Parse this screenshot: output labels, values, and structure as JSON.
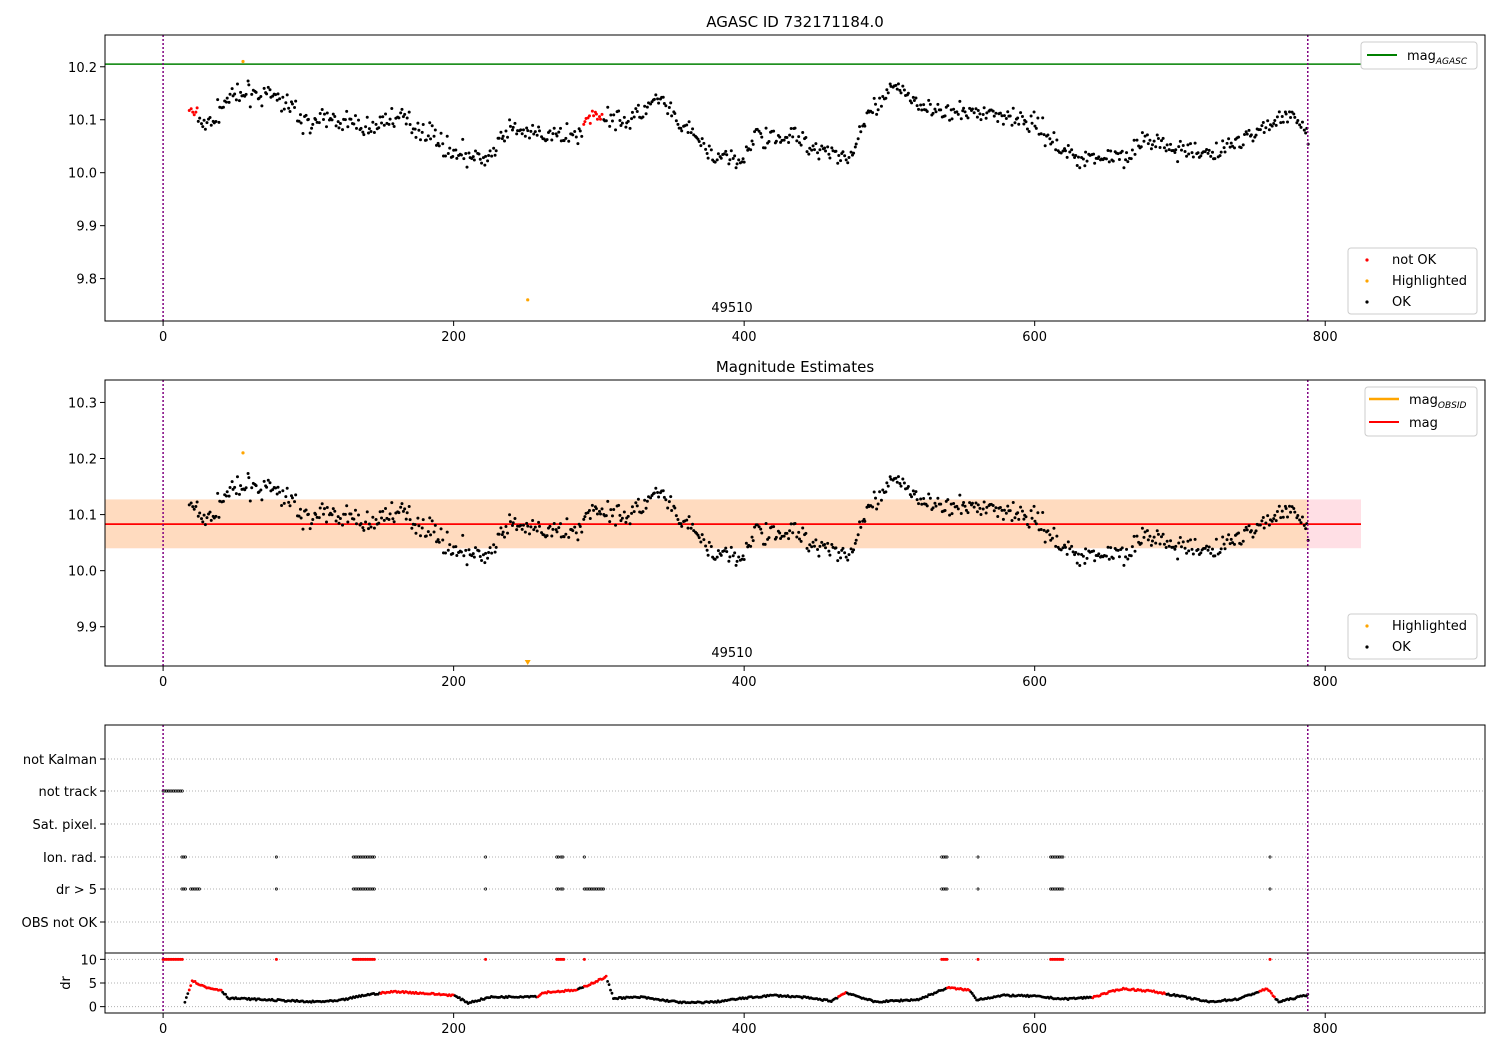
{
  "figure": {
    "x_ticks": [
      0,
      200,
      400,
      600,
      800
    ],
    "obsid_label": "49510",
    "colors": {
      "ok": "#000000",
      "not_ok": "#ff0000",
      "highlighted": "#ffa500",
      "mag_agasc": "#008000",
      "mag_obsid": "#ffa500",
      "mag": "#ff0000",
      "boundary": "#800080",
      "band_red": "#ffc0cb",
      "band_orange": "#ffdab9"
    }
  },
  "chart_data": [
    {
      "type": "scatter",
      "title": "AGASC ID 732171184.0",
      "xlim": [
        -40,
        910
      ],
      "ylim": [
        9.72,
        10.26
      ],
      "yticks": [
        9.8,
        9.9,
        10.0,
        10.1,
        10.2
      ],
      "mag_agasc": 10.205,
      "legend_lines": [
        {
          "name": "mag",
          "subscript": "AGASC"
        }
      ],
      "legend_points": [
        "not OK",
        "Highlighted",
        "OK"
      ],
      "highlighted": [
        [
          55,
          10.21
        ],
        [
          251,
          9.76
        ]
      ],
      "not_ok_x_range": [
        18,
        24
      ],
      "not_ok_x_range_2": [
        289,
        303
      ]
    },
    {
      "type": "scatter",
      "title": "Magnitude Estimates",
      "xlim": [
        -40,
        910
      ],
      "ylim": [
        9.83,
        10.34
      ],
      "yticks": [
        9.9,
        10.0,
        10.1,
        10.2,
        10.3
      ],
      "mag": 10.083,
      "band": [
        10.04,
        10.127
      ],
      "legend_lines": [
        {
          "name": "mag",
          "subscript": "OBSID"
        },
        {
          "name": "mag",
          "subscript": ""
        }
      ],
      "legend_points": [
        "Highlighted",
        "OK"
      ],
      "highlighted": [
        [
          55,
          10.21
        ]
      ],
      "highlighted_marker": {
        "x": 251,
        "note": "below axis"
      }
    },
    {
      "type": "scatter",
      "title": "",
      "xlim": [
        -40,
        910
      ],
      "flag_rows": [
        "not Kalman",
        "not track",
        "Sat. pixel.",
        "Ion. rad.",
        "dr > 5",
        "OBS not OK"
      ],
      "flags": {
        "not track": [
          [
            0,
            14
          ]
        ],
        "Ion. rad.": [
          [
            13,
            16
          ],
          [
            78,
            79
          ],
          [
            131,
            146
          ],
          [
            222,
            223
          ],
          [
            271,
            273
          ],
          [
            274,
            276
          ],
          [
            290,
            291
          ],
          [
            536,
            540
          ],
          [
            561,
            562
          ],
          [
            611,
            620
          ],
          [
            762,
            763
          ]
        ],
        "dr > 5": [
          [
            13,
            16
          ],
          [
            19,
            25
          ],
          [
            78,
            79
          ],
          [
            131,
            146
          ],
          [
            222,
            223
          ],
          [
            271,
            273
          ],
          [
            274,
            276
          ],
          [
            290,
            304
          ],
          [
            536,
            540
          ],
          [
            561,
            562
          ],
          [
            611,
            620
          ],
          [
            762,
            763
          ]
        ]
      },
      "dr_ylabel": "dr",
      "dr_yticks": [
        0,
        5,
        10
      ],
      "dr_ylim": [
        -0.5,
        10.5
      ]
    }
  ],
  "boundaries_x": [
    0,
    788
  ]
}
